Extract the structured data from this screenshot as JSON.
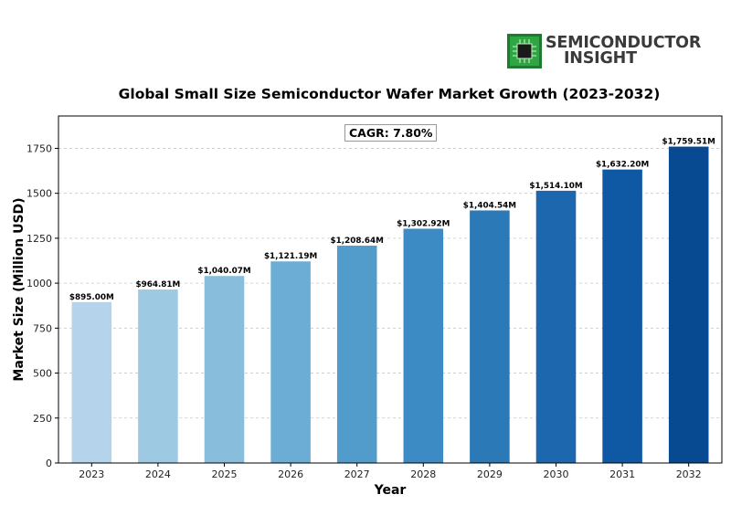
{
  "brand": {
    "line1": "SEMICONDUCTOR",
    "line2": "INSIGHT",
    "icon": "chip-icon"
  },
  "chart_data": {
    "type": "bar",
    "title": "Global Small Size Semiconductor Wafer Market Growth (2023-2032)",
    "xlabel": "Year",
    "ylabel": "Market Size (Million USD)",
    "categories": [
      "2023",
      "2024",
      "2025",
      "2026",
      "2027",
      "2028",
      "2029",
      "2030",
      "2031",
      "2032"
    ],
    "values": [
      895.0,
      964.81,
      1040.07,
      1121.19,
      1208.64,
      1302.92,
      1404.54,
      1514.1,
      1632.2,
      1759.51
    ],
    "data_labels": [
      "$895.00M",
      "$964.81M",
      "$1,040.07M",
      "$1,121.19M",
      "$1,208.64M",
      "$1,302.92M",
      "$1,404.54M",
      "$1,514.10M",
      "$1,632.20M",
      "$1,759.51M"
    ],
    "yticks": [
      0,
      250,
      500,
      750,
      1000,
      1250,
      1500,
      1750
    ],
    "ylim": [
      0,
      1930
    ],
    "grid": true,
    "annotation": "CAGR: 7.80%",
    "colors": [
      "#b5d3ea",
      "#9ec9e2",
      "#88bedc",
      "#6cadd6",
      "#529ccc",
      "#3d8bc4",
      "#2c79b8",
      "#1c67ad",
      "#0f58a3",
      "#084a91"
    ]
  }
}
